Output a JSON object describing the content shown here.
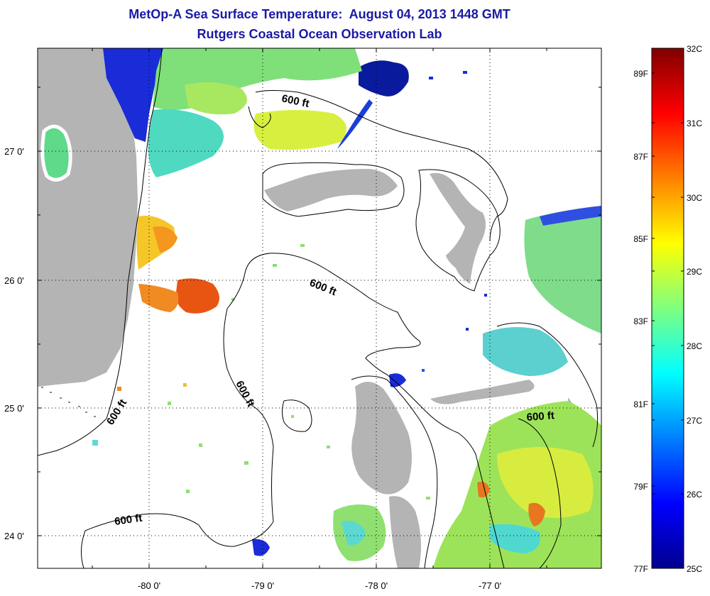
{
  "title": "MetOp-A Sea Surface Temperature:  August 04, 2013 1448 GMT",
  "subtitle": "Rutgers Coastal Ocean Observation Lab",
  "map": {
    "lat_labels": [
      "27 0'",
      "26 0'",
      "25 0'",
      "24 0'"
    ],
    "lon_labels": [
      "-80 0'",
      "-79 0'",
      "-78 0'",
      "-77 0'"
    ],
    "contour_labels": [
      "600 ft",
      "600 ft",
      "600 ft",
      "600 ft",
      "600 ft",
      "600 ft"
    ],
    "colors": {
      "land": "#b4b4b4",
      "ocean_nodata": "#ffffff",
      "contour": "#000000"
    }
  },
  "colorbar": {
    "celsius_labels": [
      "32C",
      "31C",
      "30C",
      "29C",
      "28C",
      "27C",
      "26C",
      "25C"
    ],
    "fahrenheit_labels": [
      "89F",
      "87F",
      "85F",
      "83F",
      "81F",
      "79F",
      "77F"
    ],
    "range_c": [
      25,
      32
    ],
    "colormap": "jet"
  }
}
